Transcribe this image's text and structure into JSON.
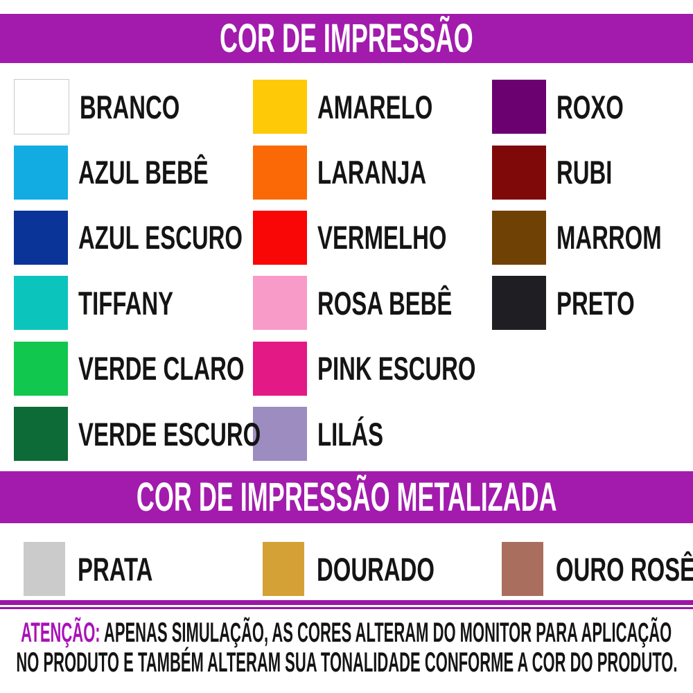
{
  "colors": {
    "banner_bg": "#A21BAD",
    "banner_text": "#FFFFFF",
    "divider": "#9A16A5",
    "attention_accent": "#A911B6",
    "body_text": "#141414",
    "page_bg": "#FFFFFF"
  },
  "print_section": {
    "title": "COR DE IMPRESSÃO",
    "items": [
      {
        "label": "BRANCO",
        "hex": "#FFFFFF",
        "border": "#C9C9C9"
      },
      {
        "label": "AZUL BEBÊ",
        "hex": "#12ACE3"
      },
      {
        "label": "AZUL ESCURO",
        "hex": "#0A3498"
      },
      {
        "label": "TIFFANY",
        "hex": "#0BC5BD"
      },
      {
        "label": "VERDE CLARO",
        "hex": "#12C74D"
      },
      {
        "label": "VERDE ESCURO",
        "hex": "#0C6B36"
      },
      {
        "label": "AMARELO",
        "hex": "#FEC907"
      },
      {
        "label": "LARANJA",
        "hex": "#FA6906"
      },
      {
        "label": "VERMELHO",
        "hex": "#F90606"
      },
      {
        "label": "ROSA BEBÊ",
        "hex": "#F99BC9"
      },
      {
        "label": "PINK ESCURO",
        "hex": "#E31985"
      },
      {
        "label": "LILÁS",
        "hex": "#9C8CC0"
      },
      {
        "label": "ROXO",
        "hex": "#6B0170"
      },
      {
        "label": "RUBI",
        "hex": "#7F0909"
      },
      {
        "label": "MARROM",
        "hex": "#6F4105"
      },
      {
        "label": "PRETO",
        "hex": "#1F1F23"
      }
    ]
  },
  "metallic_section": {
    "title": "COR DE IMPRESSÃO METALIZADA",
    "items": [
      {
        "label": "PRATA",
        "hex": "#CBCBCB"
      },
      {
        "label": "DOURADO",
        "hex": "#D4A136"
      },
      {
        "label": "OURO ROSÊ",
        "hex": "#A96E5E"
      }
    ]
  },
  "warning": {
    "prefix": "ATENÇÃO:",
    "line1_rest": " APENAS SIMULAÇÃO, AS CORES ALTERAM DO MONITOR PARA APLICAÇÃO",
    "line2": "NO PRODUTO E TAMBÉM ALTERAM SUA TONALIDADE CONFORME A COR DO PRODUTO."
  }
}
